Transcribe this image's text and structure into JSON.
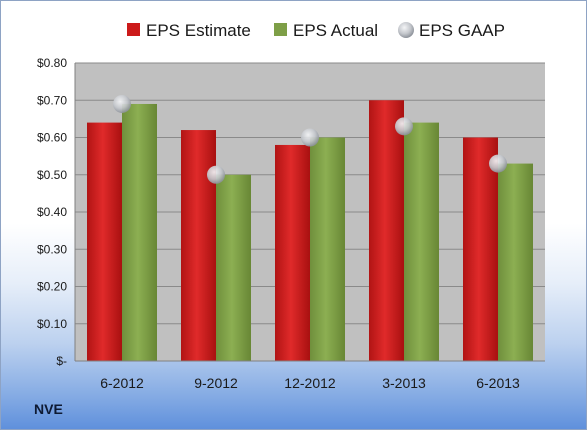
{
  "ticker": "NVE",
  "colors": {
    "estimate": "#cc1a1a",
    "actual": "#7e9f47",
    "gaap": "#c4c7cc",
    "plot_bg": "#c0c0c0"
  },
  "chart_data": {
    "type": "bar",
    "title": "",
    "xlabel": "",
    "ylabel": "",
    "categories": [
      "6-2012",
      "9-2012",
      "12-2012",
      "3-2013",
      "6-2013"
    ],
    "series": [
      {
        "name": "EPS Estimate",
        "kind": "bar",
        "values": [
          0.64,
          0.62,
          0.58,
          0.7,
          0.6
        ]
      },
      {
        "name": "EPS Actual",
        "kind": "bar",
        "values": [
          0.69,
          0.5,
          0.6,
          0.64,
          0.53
        ]
      },
      {
        "name": "EPS GAAP",
        "kind": "marker",
        "values": [
          0.69,
          0.5,
          0.6,
          0.63,
          0.53
        ]
      }
    ],
    "ylim": [
      0,
      0.8
    ],
    "yticks": [
      0,
      0.1,
      0.2,
      0.3,
      0.4,
      0.5,
      0.6,
      0.7,
      0.8
    ],
    "ytick_labels": [
      "$-",
      "$0.10",
      "$0.20",
      "$0.30",
      "$0.40",
      "$0.50",
      "$0.60",
      "$0.70",
      "$0.80"
    ],
    "grid": true,
    "legend_position": "top"
  }
}
